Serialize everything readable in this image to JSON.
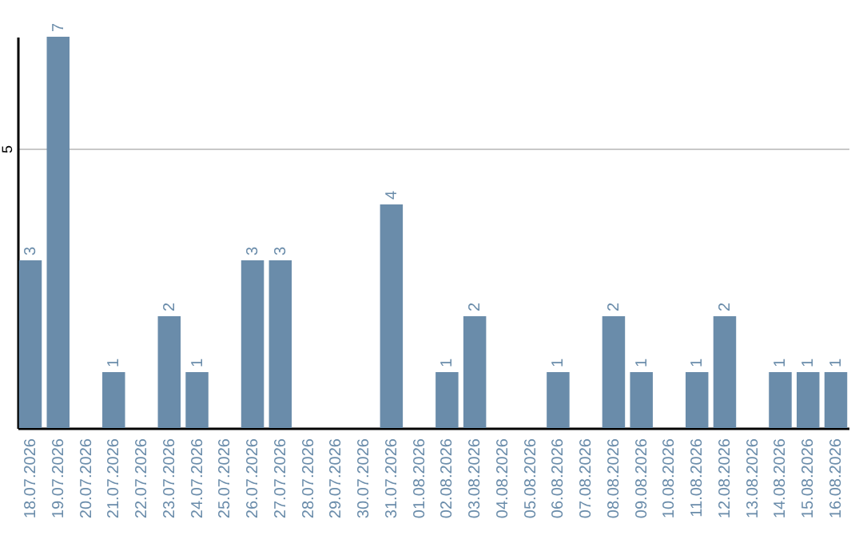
{
  "chart_data": {
    "type": "bar",
    "categories": [
      "18.07.2026",
      "19.07.2026",
      "20.07.2026",
      "21.07.2026",
      "22.07.2026",
      "23.07.2026",
      "24.07.2026",
      "25.07.2026",
      "26.07.2026",
      "27.07.2026",
      "28.07.2026",
      "29.07.2026",
      "30.07.2026",
      "31.07.2026",
      "01.08.2026",
      "02.08.2026",
      "03.08.2026",
      "04.08.2026",
      "05.08.2026",
      "06.08.2026",
      "07.08.2026",
      "08.08.2026",
      "09.08.2026",
      "10.08.2026",
      "11.08.2026",
      "12.08.2026",
      "13.08.2026",
      "14.08.2026",
      "15.08.2026",
      "16.08.2026"
    ],
    "values": [
      3,
      7,
      0,
      1,
      0,
      2,
      1,
      0,
      3,
      3,
      0,
      0,
      0,
      4,
      0,
      1,
      2,
      0,
      0,
      1,
      0,
      2,
      1,
      0,
      1,
      2,
      0,
      1,
      1,
      1
    ],
    "value_labels": [
      "3",
      "7",
      null,
      "1",
      null,
      "2",
      "1",
      null,
      "3",
      "3",
      null,
      null,
      null,
      "4",
      null,
      "1",
      "2",
      null,
      null,
      "1",
      null,
      "2",
      "1",
      null,
      "1",
      "2",
      null,
      "1",
      "1",
      "1"
    ],
    "color": "#6a8caa",
    "ylim": [
      0,
      7
    ],
    "yticks": [
      5
    ],
    "grid": "y"
  }
}
